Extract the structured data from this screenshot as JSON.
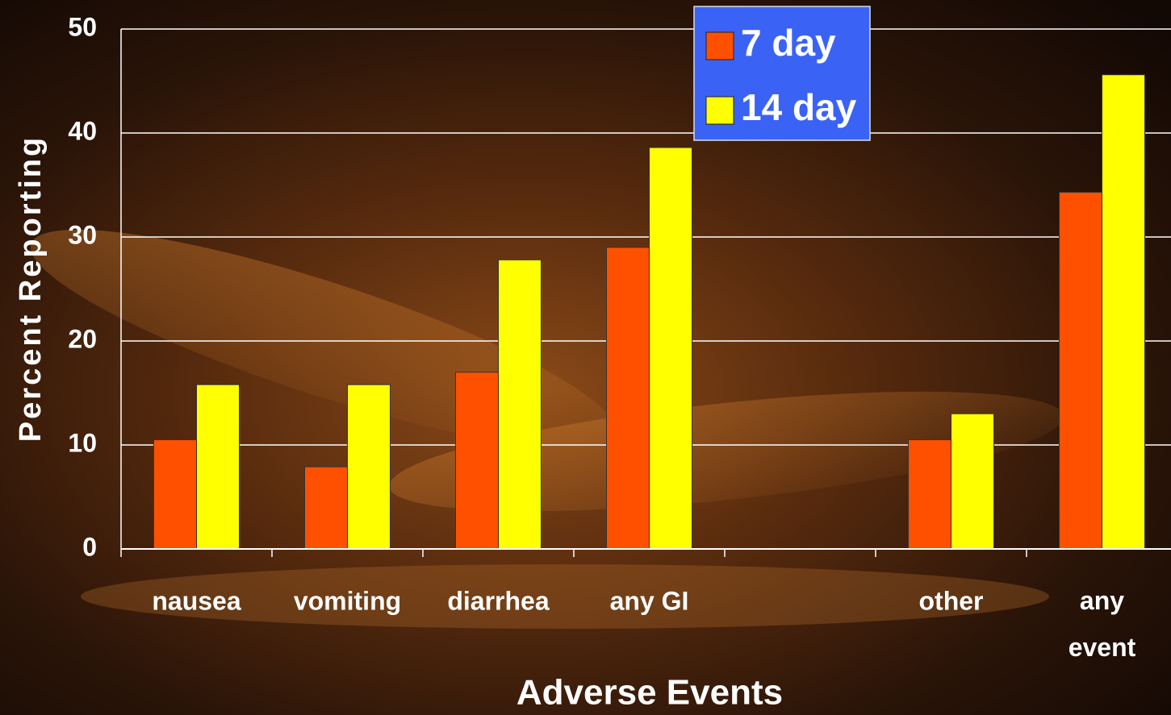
{
  "chart_data": {
    "type": "bar",
    "x_label": "Adverse Events",
    "y_label": "Percent Reporting",
    "categories": [
      "nausea",
      "vomiting",
      "diarrhea",
      "any GI",
      null,
      "other",
      "any event"
    ],
    "series": [
      {
        "name": "7 day",
        "color": "#ff5000",
        "values": [
          10.5,
          7.9,
          17,
          29,
          null,
          10.5,
          34.3
        ]
      },
      {
        "name": "14 day",
        "color": "#ffff00",
        "values": [
          15.8,
          15.8,
          27.8,
          38.6,
          null,
          13,
          45.6
        ]
      }
    ],
    "ylim": [
      0,
      50
    ],
    "yticks": [
      0,
      10,
      20,
      30,
      40,
      50
    ],
    "grid": true,
    "legend_position": "top"
  }
}
